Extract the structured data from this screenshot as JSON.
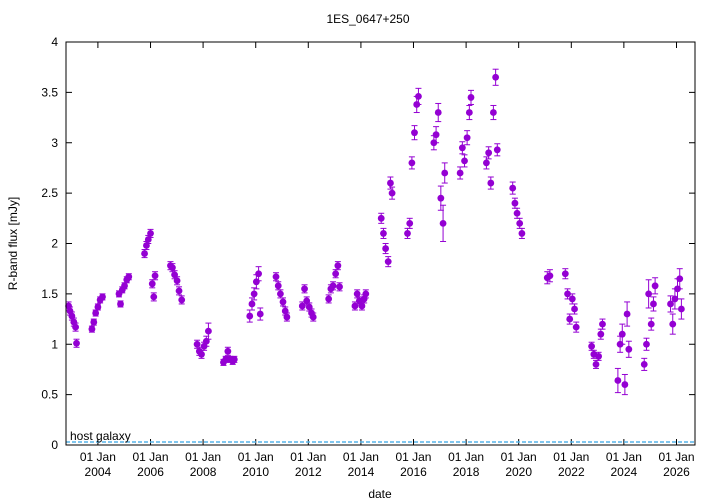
{
  "chart_data": {
    "type": "scatter",
    "title": "1ES_0647+250",
    "xlabel": "date",
    "ylabel": "R-band flux [mJy]",
    "ylim": [
      0,
      4
    ],
    "xlim": [
      "2002-10-15",
      "2026-09-15"
    ],
    "y_ticks": [
      "0",
      "0.5",
      "1",
      "1.5",
      "2",
      "2.5",
      "3",
      "3.5",
      "4"
    ],
    "x_ticks": [
      {
        "date": "2004-01-01",
        "top": "01 Jan",
        "bottom": "2004"
      },
      {
        "date": "2006-01-01",
        "top": "01 Jan",
        "bottom": "2006"
      },
      {
        "date": "2008-01-01",
        "top": "01 Jan",
        "bottom": "2008"
      },
      {
        "date": "2010-01-01",
        "top": "01 Jan",
        "bottom": "2010"
      },
      {
        "date": "2012-01-01",
        "top": "01 Jan",
        "bottom": "2012"
      },
      {
        "date": "2014-01-01",
        "top": "01 Jan",
        "bottom": "2014"
      },
      {
        "date": "2016-01-01",
        "top": "01 Jan",
        "bottom": "2016"
      },
      {
        "date": "2018-01-01",
        "top": "01 Jan",
        "bottom": "2018"
      },
      {
        "date": "2020-01-01",
        "top": "01 Jan",
        "bottom": "2020"
      },
      {
        "date": "2022-01-01",
        "top": "01 Jan",
        "bottom": "2022"
      },
      {
        "date": "2024-01-01",
        "top": "01 Jan",
        "bottom": "2024"
      },
      {
        "date": "2026-01-01",
        "top": "01 Jan",
        "bottom": "2026"
      }
    ],
    "grid": false,
    "legend_position": "none",
    "host_galaxy": {
      "label": "host galaxy",
      "value": 0.03,
      "color": "#56b4e9"
    },
    "series": [
      {
        "color": "#9400d3",
        "points": [
          [
            "2002-11-20",
            1.38,
            0.04
          ],
          [
            "2002-12-10",
            1.33,
            0.04
          ],
          [
            "2003-01-05",
            1.28,
            0.04
          ],
          [
            "2003-02-01",
            1.22,
            0.04
          ],
          [
            "2003-02-25",
            1.17,
            0.04
          ],
          [
            "2003-03-10",
            1.01,
            0.04
          ],
          [
            "2003-10-10",
            1.15,
            0.03
          ],
          [
            "2003-11-05",
            1.22,
            0.03
          ],
          [
            "2003-12-01",
            1.31,
            0.03
          ],
          [
            "2004-01-01",
            1.37,
            0.03
          ],
          [
            "2004-02-01",
            1.44,
            0.03
          ],
          [
            "2004-03-05",
            1.47,
            0.03
          ],
          [
            "2004-10-20",
            1.5,
            0.03
          ],
          [
            "2004-11-10",
            1.4,
            0.03
          ],
          [
            "2004-12-05",
            1.54,
            0.03
          ],
          [
            "2005-01-05",
            1.58,
            0.03
          ],
          [
            "2005-02-05",
            1.64,
            0.03
          ],
          [
            "2005-03-05",
            1.67,
            0.03
          ],
          [
            "2005-10-10",
            1.9,
            0.04
          ],
          [
            "2005-11-05",
            1.98,
            0.04
          ],
          [
            "2005-12-01",
            2.04,
            0.04
          ],
          [
            "2006-01-01",
            2.1,
            0.04
          ],
          [
            "2006-01-25",
            1.6,
            0.04
          ],
          [
            "2006-02-15",
            1.47,
            0.04
          ],
          [
            "2006-03-05",
            1.68,
            0.04
          ],
          [
            "2006-10-05",
            1.78,
            0.04
          ],
          [
            "2006-11-01",
            1.76,
            0.04
          ],
          [
            "2006-12-01",
            1.69,
            0.04
          ],
          [
            "2007-01-05",
            1.63,
            0.04
          ],
          [
            "2007-02-01",
            1.53,
            0.04
          ],
          [
            "2007-03-10",
            1.44,
            0.04
          ],
          [
            "2007-10-10",
            1.0,
            0.04
          ],
          [
            "2007-11-10",
            0.93,
            0.04
          ],
          [
            "2007-12-10",
            0.9,
            0.04
          ],
          [
            "2008-01-15",
            0.98,
            0.04
          ],
          [
            "2008-02-15",
            1.03,
            0.05
          ],
          [
            "2008-03-15",
            1.13,
            0.08
          ],
          [
            "2008-10-10",
            0.82,
            0.03
          ],
          [
            "2008-11-10",
            0.85,
            0.03
          ],
          [
            "2008-12-10",
            0.93,
            0.04
          ],
          [
            "2009-01-15",
            0.85,
            0.03
          ],
          [
            "2009-02-15",
            0.83,
            0.03
          ],
          [
            "2009-03-10",
            0.85,
            0.03
          ],
          [
            "2009-10-10",
            1.28,
            0.06
          ],
          [
            "2009-11-10",
            1.4,
            0.06
          ],
          [
            "2009-12-10",
            1.5,
            0.06
          ],
          [
            "2010-01-10",
            1.62,
            0.07
          ],
          [
            "2010-02-10",
            1.7,
            0.07
          ],
          [
            "2010-03-05",
            1.3,
            0.06
          ],
          [
            "2010-10-10",
            1.67,
            0.04
          ],
          [
            "2010-11-10",
            1.58,
            0.04
          ],
          [
            "2010-12-10",
            1.5,
            0.04
          ],
          [
            "2011-01-15",
            1.42,
            0.04
          ],
          [
            "2011-02-15",
            1.33,
            0.04
          ],
          [
            "2011-03-10",
            1.27,
            0.04
          ],
          [
            "2011-10-10",
            1.38,
            0.04
          ],
          [
            "2011-11-10",
            1.55,
            0.04
          ],
          [
            "2011-12-10",
            1.43,
            0.04
          ],
          [
            "2012-01-15",
            1.37,
            0.04
          ],
          [
            "2012-02-15",
            1.31,
            0.04
          ],
          [
            "2012-03-10",
            1.27,
            0.04
          ],
          [
            "2012-10-10",
            1.45,
            0.04
          ],
          [
            "2012-11-10",
            1.55,
            0.04
          ],
          [
            "2012-12-10",
            1.58,
            0.04
          ],
          [
            "2013-01-15",
            1.7,
            0.04
          ],
          [
            "2013-02-15",
            1.78,
            0.04
          ],
          [
            "2013-03-10",
            1.57,
            0.04
          ],
          [
            "2013-10-10",
            1.38,
            0.04
          ],
          [
            "2013-11-10",
            1.5,
            0.04
          ],
          [
            "2013-12-10",
            1.43,
            0.04
          ],
          [
            "2014-01-15",
            1.38,
            0.04
          ],
          [
            "2014-02-15",
            1.45,
            0.04
          ],
          [
            "2014-03-10",
            1.5,
            0.04
          ],
          [
            "2014-10-10",
            2.25,
            0.05
          ],
          [
            "2014-11-10",
            2.1,
            0.05
          ],
          [
            "2014-12-10",
            1.95,
            0.05
          ],
          [
            "2015-01-15",
            1.82,
            0.05
          ],
          [
            "2015-02-15",
            2.6,
            0.06
          ],
          [
            "2015-03-10",
            2.5,
            0.06
          ],
          [
            "2015-10-10",
            2.1,
            0.05
          ],
          [
            "2015-11-10",
            2.2,
            0.05
          ],
          [
            "2015-12-10",
            2.8,
            0.06
          ],
          [
            "2016-01-15",
            3.1,
            0.07
          ],
          [
            "2016-02-15",
            3.38,
            0.08
          ],
          [
            "2016-03-10",
            3.46,
            0.08
          ],
          [
            "2016-10-10",
            3.0,
            0.07
          ],
          [
            "2016-11-10",
            3.08,
            0.08
          ],
          [
            "2016-12-10",
            3.3,
            0.09
          ],
          [
            "2017-01-15",
            2.45,
            0.12
          ],
          [
            "2017-02-15",
            2.2,
            0.18
          ],
          [
            "2017-03-10",
            2.7,
            0.1
          ],
          [
            "2017-10-10",
            2.7,
            0.06
          ],
          [
            "2017-11-10",
            2.95,
            0.06
          ],
          [
            "2017-12-10",
            2.82,
            0.06
          ],
          [
            "2018-01-15",
            3.05,
            0.07
          ],
          [
            "2018-02-15",
            3.3,
            0.07
          ],
          [
            "2018-03-10",
            3.45,
            0.07
          ],
          [
            "2018-10-10",
            2.8,
            0.06
          ],
          [
            "2018-11-10",
            2.9,
            0.06
          ],
          [
            "2018-12-10",
            2.6,
            0.06
          ],
          [
            "2019-01-15",
            3.3,
            0.07
          ],
          [
            "2019-02-15",
            3.65,
            0.08
          ],
          [
            "2019-03-10",
            2.93,
            0.06
          ],
          [
            "2019-10-10",
            2.55,
            0.06
          ],
          [
            "2019-11-10",
            2.4,
            0.05
          ],
          [
            "2019-12-10",
            2.3,
            0.05
          ],
          [
            "2020-01-15",
            2.2,
            0.05
          ],
          [
            "2020-02-15",
            2.1,
            0.05
          ],
          [
            "2021-02-01",
            1.66,
            0.06
          ],
          [
            "2021-03-10",
            1.68,
            0.06
          ],
          [
            "2021-10-10",
            1.7,
            0.05
          ],
          [
            "2021-11-10",
            1.5,
            0.05
          ],
          [
            "2021-12-10",
            1.25,
            0.05
          ],
          [
            "2022-01-15",
            1.45,
            0.05
          ],
          [
            "2022-02-15",
            1.35,
            0.05
          ],
          [
            "2022-03-10",
            1.17,
            0.05
          ],
          [
            "2022-10-10",
            0.98,
            0.04
          ],
          [
            "2022-11-10",
            0.9,
            0.04
          ],
          [
            "2022-12-10",
            0.8,
            0.04
          ],
          [
            "2023-01-15",
            0.88,
            0.04
          ],
          [
            "2023-02-15",
            1.1,
            0.05
          ],
          [
            "2023-03-10",
            1.2,
            0.05
          ],
          [
            "2023-10-10",
            0.64,
            0.12
          ],
          [
            "2023-11-10",
            1.0,
            0.08
          ],
          [
            "2023-12-10",
            1.1,
            0.1
          ],
          [
            "2024-01-15",
            0.6,
            0.1
          ],
          [
            "2024-02-15",
            1.3,
            0.12
          ],
          [
            "2024-03-10",
            0.95,
            0.08
          ],
          [
            "2024-10-10",
            0.8,
            0.06
          ],
          [
            "2024-11-10",
            1.0,
            0.06
          ],
          [
            "2024-12-10",
            1.5,
            0.14
          ],
          [
            "2025-01-15",
            1.2,
            0.06
          ],
          [
            "2025-02-15",
            1.4,
            0.07
          ],
          [
            "2025-03-10",
            1.58,
            0.08
          ],
          [
            "2025-10-10",
            1.4,
            0.08
          ],
          [
            "2025-11-10",
            1.2,
            0.1
          ],
          [
            "2025-12-10",
            1.45,
            0.1
          ],
          [
            "2026-01-15",
            1.55,
            0.1
          ],
          [
            "2026-02-15",
            1.65,
            0.1
          ],
          [
            "2026-03-10",
            1.35,
            0.1
          ]
        ]
      }
    ]
  }
}
